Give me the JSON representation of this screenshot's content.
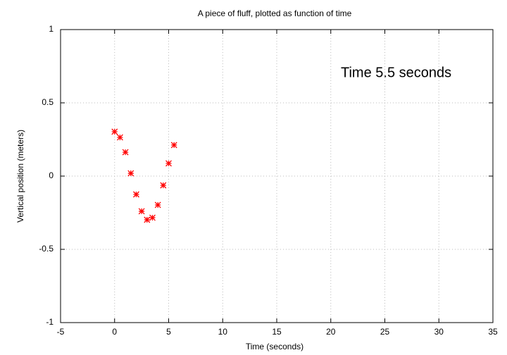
{
  "chart_data": {
    "type": "scatter",
    "title": "A piece of fluff, plotted as function of time",
    "x_label": "Time (seconds)",
    "y_label": "Vertical position (meters)",
    "annotation": "Time  5.5 seconds",
    "series": [
      {
        "color": "#ff0000",
        "x": [
          0,
          0.5,
          1,
          1.5,
          2,
          2.5,
          3,
          3.5,
          4,
          4.5,
          5,
          5.5
        ],
        "values": [
          0.303,
          0.264,
          0.163,
          0.019,
          -0.125,
          -0.24,
          -0.298,
          -0.284,
          -0.197,
          -0.063,
          0.087,
          0.212
        ]
      }
    ],
    "xlim": [
      -5,
      35
    ],
    "xticks": [
      -5,
      0,
      5,
      10,
      15,
      20,
      25,
      30,
      35
    ],
    "ylim": [
      -1,
      1
    ],
    "yticks": [
      -1,
      -0.5,
      0,
      0.5,
      1
    ],
    "grid": true
  }
}
